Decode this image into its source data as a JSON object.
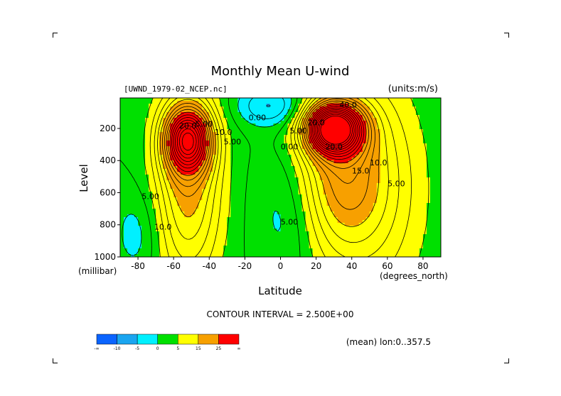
{
  "chart_data": {
    "type": "contour",
    "title": "Monthly Mean U-wind",
    "dataset_label": "[UWND_1979-02_NCEP.nc]",
    "units_label": "(units:m/s)",
    "xlabel": "Latitude",
    "x_unit_label": "(degrees_north)",
    "ylabel": "Level",
    "y_unit_label": "(millibar)",
    "xlim": [
      -90,
      90
    ],
    "ylim": [
      1000,
      10
    ],
    "x_ticks": [
      -80,
      -60,
      -40,
      -20,
      0,
      20,
      40,
      60,
      80
    ],
    "x_tick_labels": [
      "-80",
      "-60",
      "-40",
      "-20",
      "0",
      "20",
      "40",
      "60",
      "80"
    ],
    "y_ticks": [
      200,
      400,
      600,
      800,
      1000
    ],
    "y_tick_labels": [
      "200",
      "400",
      "600",
      "800",
      "1000"
    ],
    "contour_interval_label": "CONTOUR INTERVAL = 2.500E+00",
    "footer_label": "(mean) lon:0..357.5",
    "contour_labels": [
      {
        "text": "20.0",
        "lat": -52,
        "lev": 200
      },
      {
        "text": "5.00",
        "lat": -43,
        "lev": 190
      },
      {
        "text": "10.0",
        "lat": -32,
        "lev": 240
      },
      {
        "text": "5.00",
        "lat": -27,
        "lev": 300
      },
      {
        "text": "0.00",
        "lat": -13,
        "lev": 150
      },
      {
        "text": "5.00",
        "lat": 10,
        "lev": 230
      },
      {
        "text": "0.00",
        "lat": 5,
        "lev": 330
      },
      {
        "text": "20.0",
        "lat": 20,
        "lev": 180
      },
      {
        "text": "40.0",
        "lat": 38,
        "lev": 70
      },
      {
        "text": "20.0",
        "lat": 30,
        "lev": 330
      },
      {
        "text": "15.0",
        "lat": 45,
        "lev": 480
      },
      {
        "text": "10.0",
        "lat": 55,
        "lev": 430
      },
      {
        "text": "5.00",
        "lat": 65,
        "lev": 560
      },
      {
        "text": "5.00",
        "lat": -73,
        "lev": 640
      },
      {
        "text": "10.0",
        "lat": -66,
        "lev": 830
      },
      {
        "text": "5.00",
        "lat": 5,
        "lev": 800
      }
    ],
    "colorbar": {
      "levels": [
        -15,
        -10,
        -5,
        0,
        5,
        15,
        25
      ],
      "level_labels": [
        "-∞",
        "-10",
        "-5",
        "0",
        "5",
        "15",
        "25",
        "∞"
      ],
      "colors": [
        "#0a64ff",
        "#1aa5f0",
        "#00f0ff",
        "#00e000",
        "#ffff00",
        "#f7a000",
        "#ff0000"
      ]
    }
  },
  "colors": {
    "positive_line": "#000000",
    "negative_line": "#000000",
    "background": "#ffffff"
  }
}
